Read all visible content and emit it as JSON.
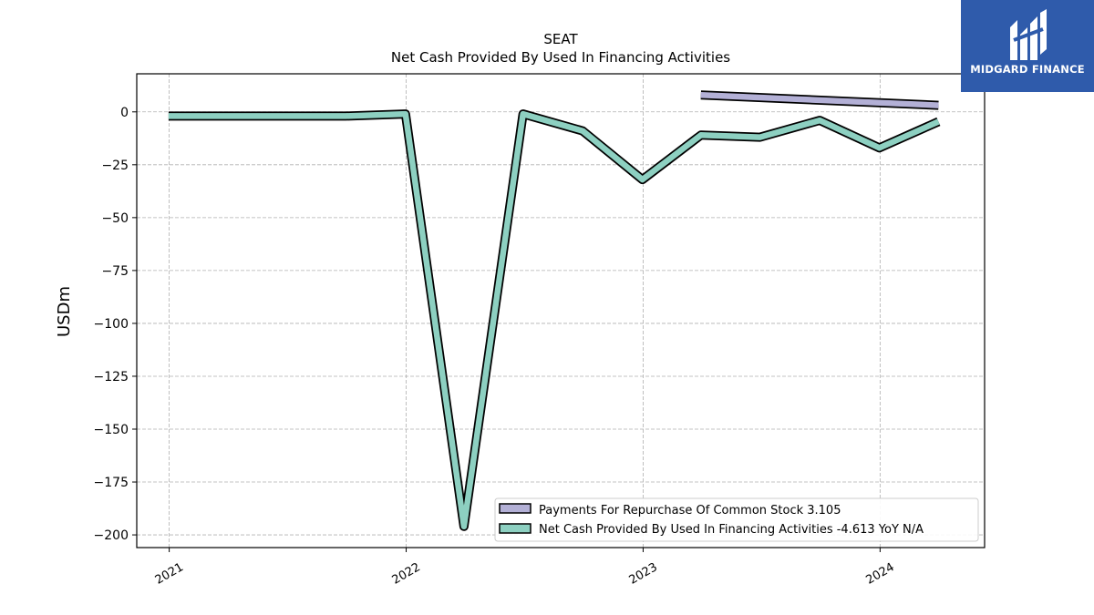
{
  "brand": {
    "name": "MIDGARD FINANCE",
    "color": "#2f5bab"
  },
  "chart_data": {
    "type": "line",
    "title": "SEAT",
    "subtitle": "Net Cash Provided By Used In Financing Activities",
    "ylabel": "USDm",
    "xlabel": "",
    "ylim": [
      -206,
      18
    ],
    "xlim": [
      "2020-11-12",
      "2024-06-10"
    ],
    "yticks": [
      0,
      -25,
      -50,
      -75,
      -100,
      -125,
      -150,
      -175,
      -200
    ],
    "ytick_labels": [
      "0",
      "−25",
      "−50",
      "−75",
      "−100",
      "−125",
      "−150",
      "−175",
      "−200"
    ],
    "xticks": [
      "2021-01-01",
      "2022-01-01",
      "2023-01-01",
      "2024-01-01"
    ],
    "xtick_labels": [
      "2021",
      "2022",
      "2023",
      "2024"
    ],
    "grid": true,
    "legend_position": "lower-right",
    "series": [
      {
        "name": "Payments For Repurchase Of Common Stock",
        "legend_label": "Payments For Repurchase Of Common Stock  3.105",
        "color": "#b3b0d6",
        "x": [
          "2023-03-31",
          "2024-03-31"
        ],
        "y": [
          8,
          3.105
        ]
      },
      {
        "name": "Net Cash Provided By Used In Financing Activities",
        "legend_label": "Net Cash Provided By Used In Financing Activities  -4.613 YoY N/A",
        "color": "#8dd0c1",
        "x": [
          "2020-12-31",
          "2021-09-30",
          "2021-12-31",
          "2022-03-31",
          "2022-06-30",
          "2022-09-30",
          "2022-12-31",
          "2023-03-31",
          "2023-06-30",
          "2023-09-30",
          "2023-12-31",
          "2024-03-31"
        ],
        "y": [
          -2,
          -2,
          -1,
          -196,
          -1,
          -9,
          -32,
          -11,
          -12,
          -4,
          -17,
          -4.613
        ]
      }
    ]
  }
}
